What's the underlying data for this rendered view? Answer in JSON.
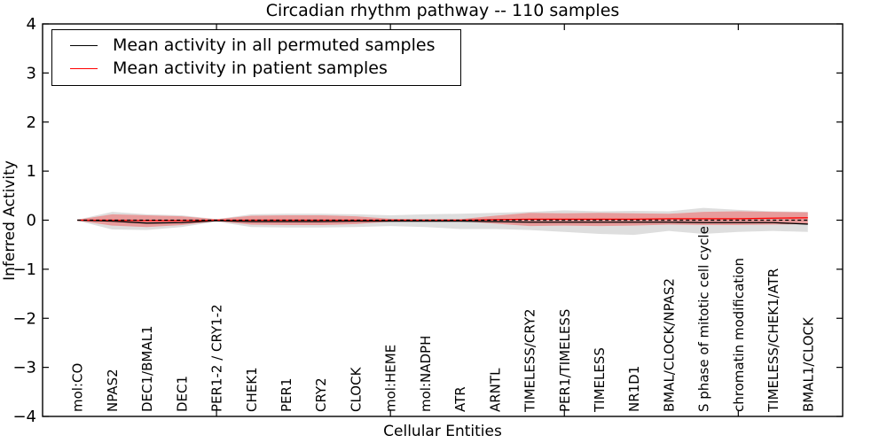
{
  "title": "Circadian rhythm pathway -- 110 samples",
  "axes": {
    "xlabel": "Cellular Entities",
    "ylabel": "Inferred Activity",
    "ytick_labels": [
      "4",
      "3",
      "2",
      "1",
      "0",
      "−1",
      "−2",
      "−3",
      "−4"
    ]
  },
  "legend": {
    "items": [
      {
        "label": "Mean activity in all permuted samples",
        "color": "#000000"
      },
      {
        "label": "Mean activity in patient samples",
        "color": "#ff0000"
      }
    ]
  },
  "chart_data": {
    "type": "line",
    "title": "Circadian rhythm pathway -- 110 samples",
    "xlabel": "Cellular Entities",
    "ylabel": "Inferred Activity",
    "ylim": [
      -4,
      4
    ],
    "yticks": [
      4,
      3,
      2,
      1,
      0,
      -1,
      -2,
      -3,
      -4
    ],
    "xtick_positions": [
      5,
      10,
      15,
      20
    ],
    "grid": false,
    "legend_position": "upper left",
    "categories": [
      "mol:CO",
      "NPAS2",
      "DEC1/BMAL1",
      "DEC1",
      "PER1-2 / CRY1-2",
      "CHEK1",
      "PER1",
      "CRY2",
      "CLOCK",
      "mol:HEME",
      "mol:NADPH",
      "ATR",
      "ARNTL",
      "TIMELESS/CRY2",
      "PER1/TIMELESS",
      "TIMELESS",
      "NR1D1",
      "BMAL/CLOCK/NPAS2",
      "S phase of mitotic cell cycle",
      "chromatin modification",
      "TIMELESS/CHEK1/ATR",
      "BMAL1/CLOCK"
    ],
    "zero_line": {
      "y": 0,
      "style": "dashed",
      "color": "#000000"
    },
    "series": [
      {
        "name": "Mean activity in all permuted samples",
        "line_color": "#000000",
        "band_color": "rgba(0,0,0,0.13)",
        "values": [
          0.0,
          -0.02,
          -0.06,
          -0.05,
          -0.01,
          -0.03,
          -0.03,
          -0.03,
          -0.02,
          -0.02,
          -0.02,
          -0.02,
          -0.03,
          -0.04,
          -0.04,
          -0.04,
          -0.04,
          -0.04,
          -0.05,
          -0.05,
          -0.05,
          -0.08
        ],
        "band_hi": [
          0.01,
          0.17,
          0.12,
          0.1,
          0.02,
          0.12,
          0.13,
          0.13,
          0.12,
          0.1,
          0.12,
          0.13,
          0.15,
          0.17,
          0.2,
          0.18,
          0.19,
          0.18,
          0.25,
          0.21,
          0.18,
          0.17
        ],
        "band_lo": [
          -0.01,
          -0.19,
          -0.2,
          -0.14,
          -0.03,
          -0.14,
          -0.15,
          -0.15,
          -0.14,
          -0.12,
          -0.14,
          -0.18,
          -0.18,
          -0.2,
          -0.24,
          -0.28,
          -0.3,
          -0.22,
          -0.28,
          -0.24,
          -0.22,
          -0.24
        ]
      },
      {
        "name": "Mean activity in patient samples",
        "line_color": "#ff0000",
        "band_color": "rgba(255,0,0,0.30)",
        "values": [
          0.0,
          0.0,
          -0.01,
          -0.01,
          0.0,
          0.0,
          0.0,
          0.0,
          0.0,
          0.0,
          0.0,
          0.0,
          0.01,
          0.02,
          0.02,
          0.02,
          0.02,
          0.03,
          0.03,
          0.03,
          0.04,
          0.05
        ],
        "band_hi": [
          0.01,
          0.12,
          0.1,
          0.08,
          0.02,
          0.09,
          0.1,
          0.1,
          0.08,
          0.03,
          0.02,
          0.02,
          0.09,
          0.15,
          0.14,
          0.15,
          0.14,
          0.13,
          0.17,
          0.18,
          0.17,
          0.16
        ],
        "band_lo": [
          -0.01,
          -0.11,
          -0.14,
          -0.1,
          -0.02,
          -0.09,
          -0.1,
          -0.1,
          -0.08,
          -0.03,
          -0.02,
          -0.02,
          -0.07,
          -0.12,
          -0.11,
          -0.12,
          -0.11,
          -0.09,
          -0.1,
          -0.1,
          -0.09,
          -0.08
        ]
      }
    ]
  }
}
